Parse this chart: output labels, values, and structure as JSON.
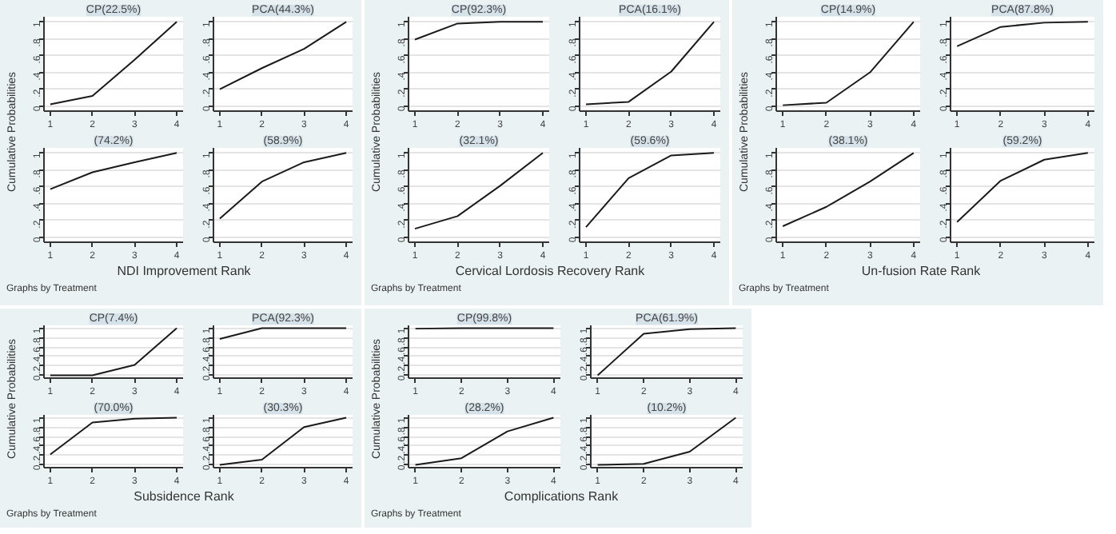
{
  "chart_data": [
    {
      "type": "line",
      "title": "CP(22.5%)",
      "ylabel": "Cumulative Probabilities",
      "x": [
        1,
        2,
        3,
        4
      ],
      "values": [
        0.02,
        0.12,
        0.55,
        1
      ],
      "color": "#1a1a1a",
      "xlim": [
        0.85,
        4.15
      ],
      "ylim": [
        -0.06,
        1.06
      ],
      "xticks": [
        1,
        2,
        3,
        4
      ],
      "yticks": [
        0,
        {
          "value": 0.2,
          "label": ".2"
        },
        {
          "value": 0.4,
          "label": ".4"
        },
        {
          "value": 0.6,
          "label": ".6"
        },
        {
          "value": 0.8,
          "label": ".8"
        },
        1
      ],
      "grid": "y"
    },
    {
      "type": "line",
      "title": "PCA(44.3%)",
      "x": [
        1,
        2,
        3,
        4
      ],
      "values": [
        0.2,
        0.45,
        0.68,
        1
      ],
      "color": "#1a1a1a",
      "xlim": [
        0.85,
        4.15
      ],
      "ylim": [
        -0.06,
        1.06
      ],
      "xticks": [
        1,
        2,
        3,
        4
      ],
      "yticks": [
        0,
        {
          "value": 0.2,
          "label": ".2"
        },
        {
          "value": 0.4,
          "label": ".4"
        },
        {
          "value": 0.6,
          "label": ".6"
        },
        {
          "value": 0.8,
          "label": ".8"
        },
        1
      ],
      "grid": "y"
    },
    {
      "type": "line",
      "title": "(74.2%)",
      "annotations": [
        "Graphs by Treatment"
      ],
      "x": [
        1,
        2,
        3,
        4
      ],
      "values": [
        0.57,
        0.77,
        0.89,
        1
      ],
      "color": "#1a1a1a",
      "xlim": [
        0.85,
        4.15
      ],
      "ylim": [
        -0.06,
        1.06
      ],
      "xticks": [
        1,
        2,
        3,
        4
      ],
      "yticks": [
        0,
        {
          "value": 0.2,
          "label": ".2"
        },
        {
          "value": 0.4,
          "label": ".4"
        },
        {
          "value": 0.6,
          "label": ".6"
        },
        {
          "value": 0.8,
          "label": ".8"
        },
        1
      ],
      "grid": "y"
    },
    {
      "type": "line",
      "title": "(58.9%)",
      "xlabel": "NDI Improvement Rank",
      "x": [
        1,
        2,
        3,
        4
      ],
      "values": [
        0.22,
        0.66,
        0.89,
        1
      ],
      "color": "#1a1a1a",
      "xlim": [
        0.85,
        4.15
      ],
      "ylim": [
        -0.06,
        1.06
      ],
      "xticks": [
        1,
        2,
        3,
        4
      ],
      "yticks": [
        0,
        {
          "value": 0.2,
          "label": ".2"
        },
        {
          "value": 0.4,
          "label": ".4"
        },
        {
          "value": 0.6,
          "label": ".6"
        },
        {
          "value": 0.8,
          "label": ".8"
        },
        1
      ],
      "grid": "y"
    },
    {
      "type": "line",
      "title": "CP(92.3%)",
      "ylabel": "Cumulative Probabilities",
      "x": [
        1,
        2,
        3,
        4
      ],
      "values": [
        0.79,
        0.98,
        1,
        1
      ],
      "color": "#1a1a1a",
      "xlim": [
        0.85,
        4.15
      ],
      "ylim": [
        -0.06,
        1.06
      ],
      "xticks": [
        1,
        2,
        3,
        4
      ],
      "yticks": [
        0,
        {
          "value": 0.2,
          "label": ".2"
        },
        {
          "value": 0.4,
          "label": ".4"
        },
        {
          "value": 0.6,
          "label": ".6"
        },
        {
          "value": 0.8,
          "label": ".8"
        },
        1
      ],
      "grid": "y"
    },
    {
      "type": "line",
      "title": "PCA(16.1%)",
      "x": [
        1,
        2,
        3,
        4
      ],
      "values": [
        0.02,
        0.05,
        0.41,
        1
      ],
      "color": "#1a1a1a",
      "xlim": [
        0.85,
        4.15
      ],
      "ylim": [
        -0.06,
        1.06
      ],
      "xticks": [
        1,
        2,
        3,
        4
      ],
      "yticks": [
        0,
        {
          "value": 0.2,
          "label": ".2"
        },
        {
          "value": 0.4,
          "label": ".4"
        },
        {
          "value": 0.6,
          "label": ".6"
        },
        {
          "value": 0.8,
          "label": ".8"
        },
        1
      ],
      "grid": "y"
    },
    {
      "type": "line",
      "title": "(32.1%)",
      "annotations": [
        "Graphs by Treatment"
      ],
      "x": [
        1,
        2,
        3,
        4
      ],
      "values": [
        0.1,
        0.25,
        0.61,
        1
      ],
      "color": "#1a1a1a",
      "xlim": [
        0.85,
        4.15
      ],
      "ylim": [
        -0.06,
        1.06
      ],
      "xticks": [
        1,
        2,
        3,
        4
      ],
      "yticks": [
        0,
        {
          "value": 0.2,
          "label": ".2"
        },
        {
          "value": 0.4,
          "label": ".4"
        },
        {
          "value": 0.6,
          "label": ".6"
        },
        {
          "value": 0.8,
          "label": ".8"
        },
        1
      ],
      "grid": "y"
    },
    {
      "type": "line",
      "title": "(59.6%)",
      "xlabel": "Cervical Lordosis Recovery Rank",
      "x": [
        1,
        2,
        3,
        4
      ],
      "values": [
        0.12,
        0.7,
        0.97,
        1
      ],
      "color": "#1a1a1a",
      "xlim": [
        0.85,
        4.15
      ],
      "ylim": [
        -0.06,
        1.06
      ],
      "xticks": [
        1,
        2,
        3,
        4
      ],
      "yticks": [
        0,
        {
          "value": 0.2,
          "label": ".2"
        },
        {
          "value": 0.4,
          "label": ".4"
        },
        {
          "value": 0.6,
          "label": ".6"
        },
        {
          "value": 0.8,
          "label": ".8"
        },
        1
      ],
      "grid": "y"
    },
    {
      "type": "line",
      "title": "CP(14.9%)",
      "ylabel": "Cumulative Probabilities",
      "x": [
        1,
        2,
        3,
        4
      ],
      "values": [
        0.01,
        0.04,
        0.4,
        1
      ],
      "color": "#1a1a1a",
      "xlim": [
        0.85,
        4.15
      ],
      "ylim": [
        -0.06,
        1.06
      ],
      "xticks": [
        1,
        2,
        3,
        4
      ],
      "yticks": [
        0,
        {
          "value": 0.2,
          "label": ".2"
        },
        {
          "value": 0.4,
          "label": ".4"
        },
        {
          "value": 0.6,
          "label": ".6"
        },
        {
          "value": 0.8,
          "label": ".8"
        },
        1
      ],
      "grid": "y"
    },
    {
      "type": "line",
      "title": "PCA(87.8%)",
      "x": [
        1,
        2,
        3,
        4
      ],
      "values": [
        0.71,
        0.94,
        0.99,
        1
      ],
      "color": "#1a1a1a",
      "xlim": [
        0.85,
        4.15
      ],
      "ylim": [
        -0.06,
        1.06
      ],
      "xticks": [
        1,
        2,
        3,
        4
      ],
      "yticks": [
        0,
        {
          "value": 0.2,
          "label": ".2"
        },
        {
          "value": 0.4,
          "label": ".4"
        },
        {
          "value": 0.6,
          "label": ".6"
        },
        {
          "value": 0.8,
          "label": ".8"
        },
        1
      ],
      "grid": "y"
    },
    {
      "type": "line",
      "title": "(38.1%)",
      "annotations": [
        "Graphs by Treatment"
      ],
      "x": [
        1,
        2,
        3,
        4
      ],
      "values": [
        0.13,
        0.36,
        0.66,
        1
      ],
      "color": "#1a1a1a",
      "xlim": [
        0.85,
        4.15
      ],
      "ylim": [
        -0.06,
        1.06
      ],
      "xticks": [
        1,
        2,
        3,
        4
      ],
      "yticks": [
        0,
        {
          "value": 0.2,
          "label": ".2"
        },
        {
          "value": 0.4,
          "label": ".4"
        },
        {
          "value": 0.6,
          "label": ".6"
        },
        {
          "value": 0.8,
          "label": ".8"
        },
        1
      ],
      "grid": "y"
    },
    {
      "type": "line",
      "title": "(59.2%)",
      "xlabel": "Un-fusion Rate Rank",
      "x": [
        1,
        2,
        3,
        4
      ],
      "values": [
        0.18,
        0.67,
        0.92,
        1
      ],
      "color": "#1a1a1a",
      "xlim": [
        0.85,
        4.15
      ],
      "ylim": [
        -0.06,
        1.06
      ],
      "xticks": [
        1,
        2,
        3,
        4
      ],
      "yticks": [
        0,
        {
          "value": 0.2,
          "label": ".2"
        },
        {
          "value": 0.4,
          "label": ".4"
        },
        {
          "value": 0.6,
          "label": ".6"
        },
        {
          "value": 0.8,
          "label": ".8"
        },
        1
      ],
      "grid": "y"
    },
    {
      "type": "line",
      "title": "CP(7.4%)",
      "ylabel": "Cumulative Probabilities",
      "x": [
        1,
        2,
        3,
        4
      ],
      "values": [
        0,
        0,
        0.22,
        1
      ],
      "color": "#1a1a1a",
      "xlim": [
        0.85,
        4.15
      ],
      "ylim": [
        -0.06,
        1.06
      ],
      "xticks": [
        1,
        2,
        3,
        4
      ],
      "yticks": [
        0,
        {
          "value": 0.2,
          "label": ".2"
        },
        {
          "value": 0.4,
          "label": ".4"
        },
        {
          "value": 0.6,
          "label": ".6"
        },
        {
          "value": 0.8,
          "label": ".8"
        },
        1
      ],
      "grid": "y"
    },
    {
      "type": "line",
      "title": "PCA(92.3%)",
      "x": [
        1,
        2,
        3,
        4
      ],
      "values": [
        0.77,
        1,
        1,
        1
      ],
      "color": "#1a1a1a",
      "xlim": [
        0.85,
        4.15
      ],
      "ylim": [
        -0.06,
        1.06
      ],
      "xticks": [
        1,
        2,
        3,
        4
      ],
      "yticks": [
        0,
        {
          "value": 0.2,
          "label": ".2"
        },
        {
          "value": 0.4,
          "label": ".4"
        },
        {
          "value": 0.6,
          "label": ".6"
        },
        {
          "value": 0.8,
          "label": ".8"
        },
        1
      ],
      "grid": "y"
    },
    {
      "type": "line",
      "title": "(70.0%)",
      "annotations": [
        "Graphs by Treatment"
      ],
      "x": [
        1,
        2,
        3,
        4
      ],
      "values": [
        0.22,
        0.9,
        0.98,
        1
      ],
      "color": "#1a1a1a",
      "xlim": [
        0.85,
        4.15
      ],
      "ylim": [
        -0.06,
        1.06
      ],
      "xticks": [
        1,
        2,
        3,
        4
      ],
      "yticks": [
        0,
        {
          "value": 0.2,
          "label": ".2"
        },
        {
          "value": 0.4,
          "label": ".4"
        },
        {
          "value": 0.6,
          "label": ".6"
        },
        {
          "value": 0.8,
          "label": ".8"
        },
        1
      ],
      "grid": "y"
    },
    {
      "type": "line",
      "title": "(30.3%)",
      "xlabel": "Subsidence Rank",
      "x": [
        1,
        2,
        3,
        4
      ],
      "values": [
        0,
        0.11,
        0.8,
        1
      ],
      "color": "#1a1a1a",
      "xlim": [
        0.85,
        4.15
      ],
      "ylim": [
        -0.06,
        1.06
      ],
      "xticks": [
        1,
        2,
        3,
        4
      ],
      "yticks": [
        0,
        {
          "value": 0.2,
          "label": ".2"
        },
        {
          "value": 0.4,
          "label": ".4"
        },
        {
          "value": 0.6,
          "label": ".6"
        },
        {
          "value": 0.8,
          "label": ".8"
        },
        1
      ],
      "grid": "y"
    },
    {
      "type": "line",
      "title": "CP(99.8%)",
      "ylabel": "Cumulative Probabilities",
      "x": [
        1,
        2,
        3,
        4
      ],
      "values": [
        0.99,
        1,
        1,
        1
      ],
      "color": "#1a1a1a",
      "xlim": [
        0.85,
        4.15
      ],
      "ylim": [
        -0.06,
        1.06
      ],
      "xticks": [
        1,
        2,
        3,
        4
      ],
      "yticks": [
        0,
        {
          "value": 0.2,
          "label": ".2"
        },
        {
          "value": 0.4,
          "label": ".4"
        },
        {
          "value": 0.6,
          "label": ".6"
        },
        {
          "value": 0.8,
          "label": ".8"
        },
        1
      ],
      "grid": "y"
    },
    {
      "type": "line",
      "title": "PCA(61.9%)",
      "x": [
        1,
        2,
        3,
        4
      ],
      "values": [
        0,
        0.88,
        0.98,
        1
      ],
      "color": "#1a1a1a",
      "xlim": [
        0.85,
        4.15
      ],
      "ylim": [
        -0.06,
        1.06
      ],
      "xticks": [
        1,
        2,
        3,
        4
      ],
      "yticks": [
        0,
        {
          "value": 0.2,
          "label": ".2"
        },
        {
          "value": 0.4,
          "label": ".4"
        },
        {
          "value": 0.6,
          "label": ".6"
        },
        {
          "value": 0.8,
          "label": ".8"
        },
        1
      ],
      "grid": "y"
    },
    {
      "type": "line",
      "title": "(28.2%)",
      "annotations": [
        "Graphs by Treatment"
      ],
      "x": [
        1,
        2,
        3,
        4
      ],
      "values": [
        0,
        0.14,
        0.71,
        1
      ],
      "color": "#1a1a1a",
      "xlim": [
        0.85,
        4.15
      ],
      "ylim": [
        -0.06,
        1.06
      ],
      "xticks": [
        1,
        2,
        3,
        4
      ],
      "yticks": [
        0,
        {
          "value": 0.2,
          "label": ".2"
        },
        {
          "value": 0.4,
          "label": ".4"
        },
        {
          "value": 0.6,
          "label": ".6"
        },
        {
          "value": 0.8,
          "label": ".8"
        },
        1
      ],
      "grid": "y"
    },
    {
      "type": "line",
      "title": "(10.2%)",
      "xlabel": "Complications Rank",
      "x": [
        1,
        2,
        3,
        4
      ],
      "values": [
        0,
        0.02,
        0.28,
        1
      ],
      "color": "#1a1a1a",
      "xlim": [
        0.85,
        4.15
      ],
      "ylim": [
        -0.06,
        1.06
      ],
      "xticks": [
        1,
        2,
        3,
        4
      ],
      "yticks": [
        0,
        {
          "value": 0.2,
          "label": ".2"
        },
        {
          "value": 0.4,
          "label": ".4"
        },
        {
          "value": 0.6,
          "label": ".6"
        },
        {
          "value": 0.8,
          "label": ".8"
        },
        1
      ],
      "grid": "y"
    }
  ]
}
